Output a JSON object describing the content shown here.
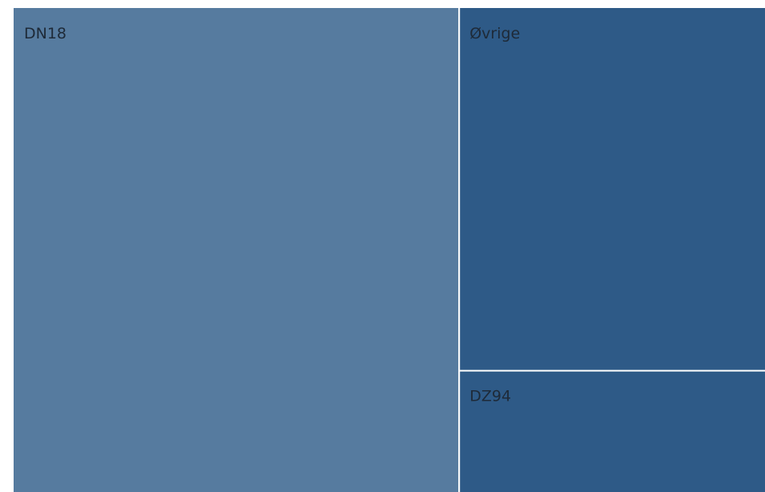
{
  "chart_data": {
    "type": "treemap",
    "title": "",
    "tiles": [
      {
        "name": "DN18",
        "value": 59.3,
        "color": "#567b9f"
      },
      {
        "name": "Øvrige",
        "value": 30.5,
        "color": "#2e5a87"
      },
      {
        "name": "DZ94",
        "value": 10.2,
        "color": "#2e5a87"
      }
    ]
  }
}
